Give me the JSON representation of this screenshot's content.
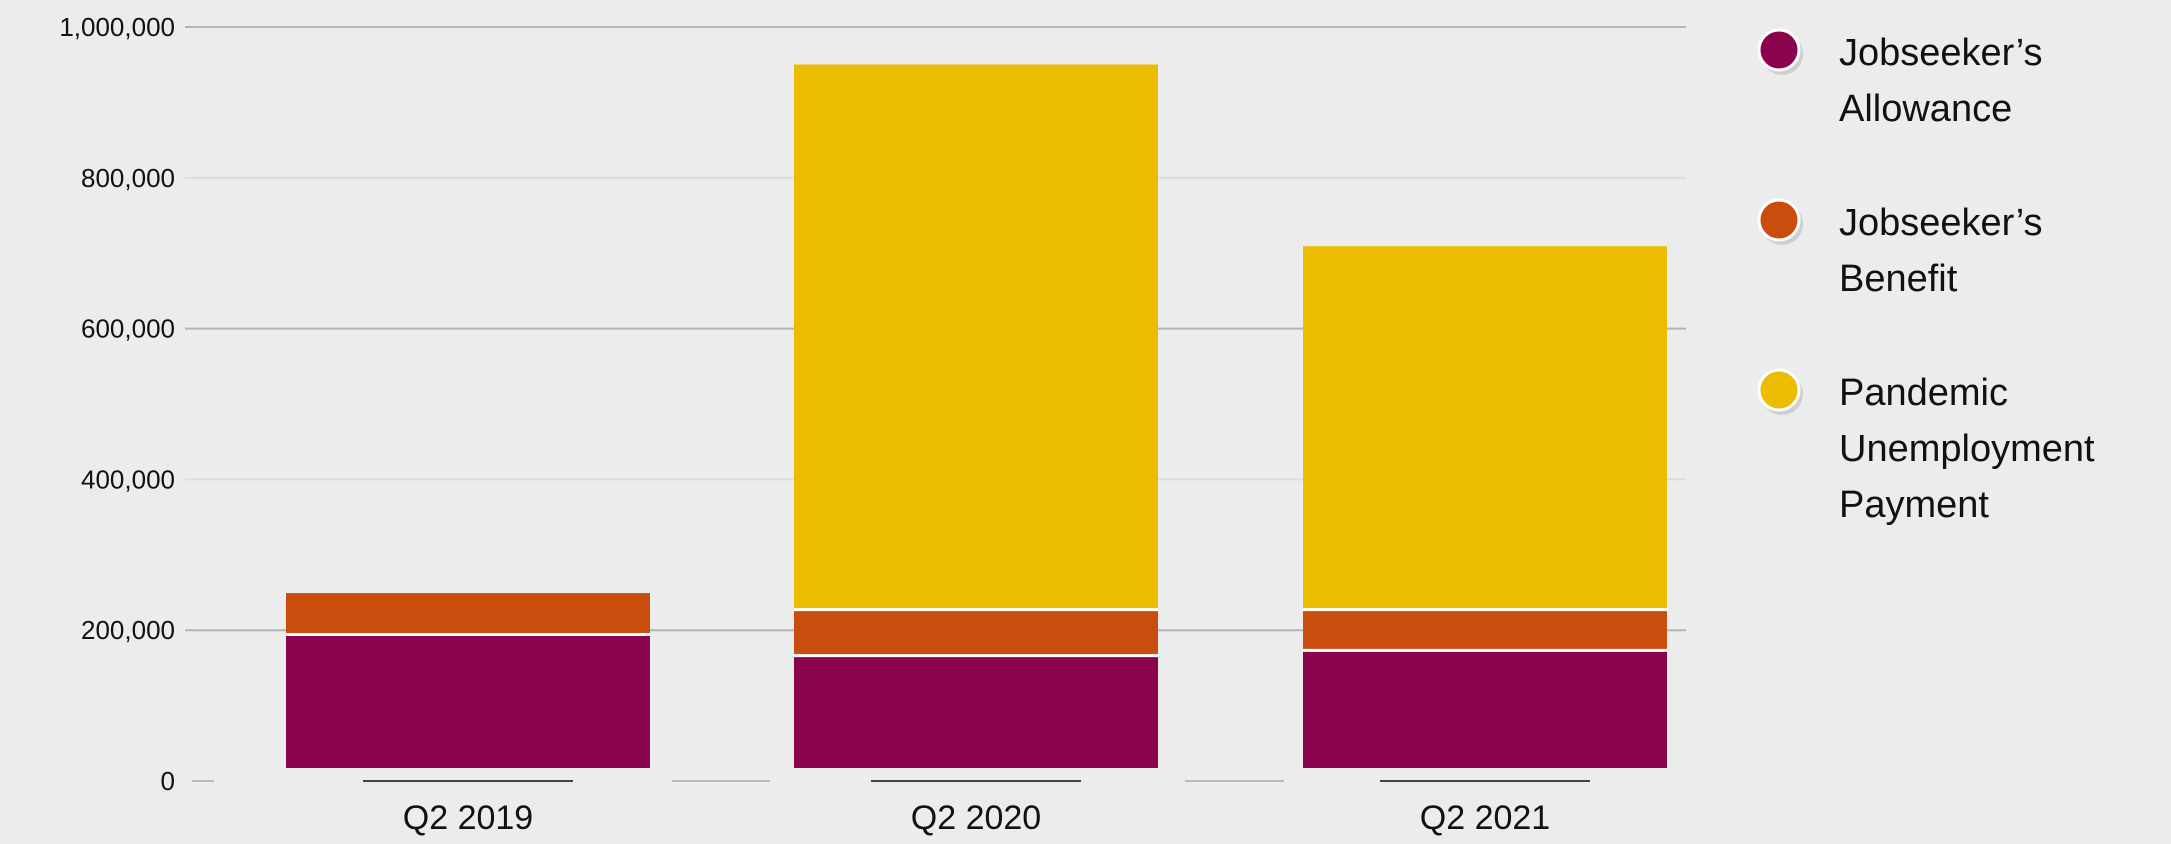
{
  "chart_data": {
    "type": "bar",
    "stacked": true,
    "categories": [
      "Q2 2019",
      "Q2 2020",
      "Q2 2021"
    ],
    "series": [
      {
        "name": "Jobseeker’s Allowance",
        "values": [
          177000,
          149000,
          156000
        ],
        "color": "#8a044d"
      },
      {
        "name": "Jobseeker’s Benefit",
        "values": [
          55000,
          61000,
          54000
        ],
        "color": "#c94d0c"
      },
      {
        "name": "Pandemic Unemployment Payment",
        "values": [
          0,
          723000,
          482000
        ],
        "color": "#ebbc00"
      }
    ],
    "legend_lines": [
      [
        "Jobseeker’s",
        "Allowance"
      ],
      [
        "Jobseeker’s",
        "Benefit"
      ],
      [
        "Pandemic",
        "Unemployment",
        "Payment"
      ]
    ],
    "ylim": [
      0,
      1000000
    ],
    "yticks": [
      0,
      200000,
      400000,
      600000,
      800000,
      1000000
    ],
    "ytick_labels": [
      "0",
      "200,000",
      "400,000",
      "600,000",
      "800,000",
      "1,000,000"
    ],
    "grid": true,
    "legend_position": "right",
    "title": "",
    "xlabel": "",
    "ylabel": ""
  }
}
